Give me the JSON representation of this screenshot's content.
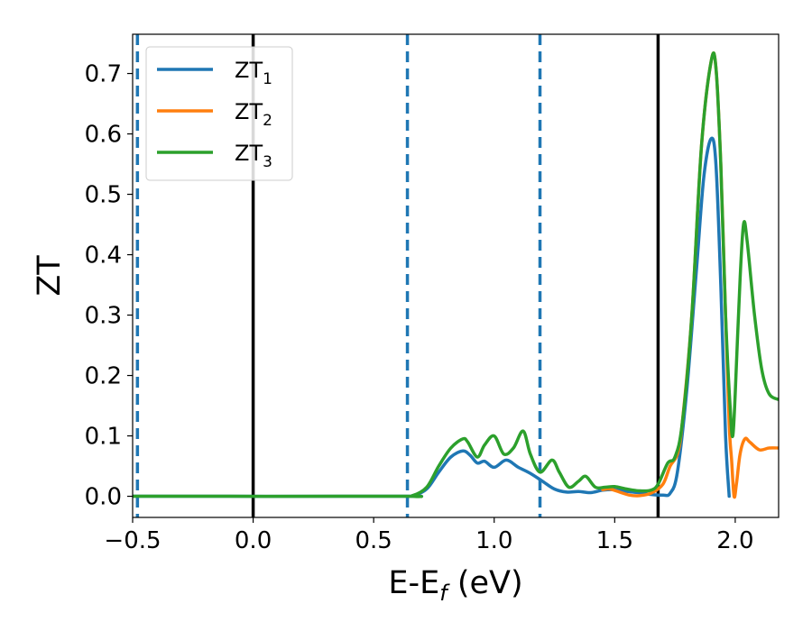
{
  "chart_data": {
    "type": "line",
    "xlabel": {
      "main": "E-E",
      "sub": "f",
      "suffix": " (eV)"
    },
    "ylabel": "ZT",
    "xlim": [
      -0.5,
      2.18
    ],
    "ylim": [
      -0.035,
      0.765
    ],
    "xticks": [
      -0.5,
      0.0,
      0.5,
      1.0,
      1.5,
      2.0
    ],
    "xtick_labels": [
      "−0.5",
      "0.0",
      "0.5",
      "1.0",
      "1.5",
      "2.0"
    ],
    "yticks": [
      0.0,
      0.1,
      0.2,
      0.3,
      0.4,
      0.5,
      0.6,
      0.7
    ],
    "ytick_labels": [
      "0.0",
      "0.1",
      "0.2",
      "0.3",
      "0.4",
      "0.5",
      "0.6",
      "0.7"
    ],
    "legend_position": "upper-left",
    "vlines": [
      {
        "x": -0.48,
        "style": "dashed",
        "color": "#1f77b4"
      },
      {
        "x": 0.0,
        "style": "solid",
        "color": "#000000"
      },
      {
        "x": 0.64,
        "style": "dashed",
        "color": "#1f77b4"
      },
      {
        "x": 1.19,
        "style": "dashed",
        "color": "#1f77b4"
      },
      {
        "x": 1.68,
        "style": "solid",
        "color": "#000000"
      }
    ],
    "series": [
      {
        "name": "ZT",
        "sub": "1",
        "color": "#1f77b4",
        "points": [
          [
            -0.5,
            0.0
          ],
          [
            0.6,
            0.0
          ],
          [
            0.66,
            0.001
          ],
          [
            0.72,
            0.012
          ],
          [
            0.77,
            0.04
          ],
          [
            0.82,
            0.065
          ],
          [
            0.87,
            0.075
          ],
          [
            0.9,
            0.068
          ],
          [
            0.93,
            0.055
          ],
          [
            0.96,
            0.058
          ],
          [
            1.0,
            0.048
          ],
          [
            1.05,
            0.06
          ],
          [
            1.1,
            0.048
          ],
          [
            1.15,
            0.038
          ],
          [
            1.2,
            0.025
          ],
          [
            1.25,
            0.012
          ],
          [
            1.3,
            0.007
          ],
          [
            1.35,
            0.008
          ],
          [
            1.4,
            0.006
          ],
          [
            1.45,
            0.01
          ],
          [
            1.5,
            0.011
          ],
          [
            1.55,
            0.008
          ],
          [
            1.6,
            0.006
          ],
          [
            1.65,
            0.003
          ],
          [
            1.7,
            0.002
          ],
          [
            1.73,
            0.005
          ],
          [
            1.76,
            0.04
          ],
          [
            1.8,
            0.18
          ],
          [
            1.84,
            0.38
          ],
          [
            1.87,
            0.53
          ],
          [
            1.9,
            0.592
          ],
          [
            1.92,
            0.55
          ],
          [
            1.94,
            0.35
          ],
          [
            1.96,
            0.1
          ],
          [
            1.975,
            0.0
          ]
        ]
      },
      {
        "name": "ZT",
        "sub": "2",
        "color": "#ff7f0e",
        "points": [
          [
            1.45,
            0.011
          ],
          [
            1.48,
            0.012
          ],
          [
            1.52,
            0.007
          ],
          [
            1.56,
            0.002
          ],
          [
            1.6,
            0.001
          ],
          [
            1.65,
            0.005
          ],
          [
            1.7,
            0.02
          ],
          [
            1.73,
            0.05
          ],
          [
            1.76,
            0.07
          ],
          [
            1.78,
            0.12
          ],
          [
            1.82,
            0.3
          ],
          [
            1.86,
            0.58
          ],
          [
            1.9,
            0.72
          ],
          [
            1.92,
            0.71
          ],
          [
            1.94,
            0.55
          ],
          [
            1.96,
            0.3
          ],
          [
            1.975,
            0.12
          ],
          [
            1.985,
            0.06
          ],
          [
            1.995,
            0.0
          ],
          [
            2.005,
            0.02
          ],
          [
            2.02,
            0.07
          ],
          [
            2.04,
            0.095
          ],
          [
            2.06,
            0.09
          ],
          [
            2.1,
            0.077
          ],
          [
            2.14,
            0.08
          ],
          [
            2.18,
            0.08
          ]
        ]
      },
      {
        "name": "ZT",
        "sub": "3",
        "color": "#2ca02c",
        "points": [
          [
            -0.5,
            0.0
          ],
          [
            0.6,
            0.0
          ],
          [
            0.66,
            0.001
          ],
          [
            0.72,
            0.015
          ],
          [
            0.77,
            0.05
          ],
          [
            0.82,
            0.08
          ],
          [
            0.87,
            0.095
          ],
          [
            0.89,
            0.09
          ],
          [
            0.93,
            0.065
          ],
          [
            0.96,
            0.085
          ],
          [
            1.0,
            0.1
          ],
          [
            1.04,
            0.07
          ],
          [
            1.08,
            0.08
          ],
          [
            1.12,
            0.108
          ],
          [
            1.15,
            0.07
          ],
          [
            1.19,
            0.04
          ],
          [
            1.24,
            0.06
          ],
          [
            1.27,
            0.04
          ],
          [
            1.31,
            0.015
          ],
          [
            1.35,
            0.025
          ],
          [
            1.38,
            0.033
          ],
          [
            1.42,
            0.015
          ],
          [
            1.46,
            0.015
          ],
          [
            1.5,
            0.016
          ],
          [
            1.55,
            0.012
          ],
          [
            1.6,
            0.009
          ],
          [
            1.65,
            0.01
          ],
          [
            1.68,
            0.02
          ],
          [
            1.72,
            0.055
          ],
          [
            1.75,
            0.065
          ],
          [
            1.78,
            0.12
          ],
          [
            1.82,
            0.3
          ],
          [
            1.86,
            0.58
          ],
          [
            1.9,
            0.72
          ],
          [
            1.92,
            0.71
          ],
          [
            1.94,
            0.55
          ],
          [
            1.96,
            0.3
          ],
          [
            1.98,
            0.14
          ],
          [
            1.99,
            0.1
          ],
          [
            2.0,
            0.17
          ],
          [
            2.02,
            0.36
          ],
          [
            2.035,
            0.452
          ],
          [
            2.05,
            0.42
          ],
          [
            2.08,
            0.3
          ],
          [
            2.11,
            0.21
          ],
          [
            2.14,
            0.17
          ],
          [
            2.18,
            0.16
          ]
        ]
      }
    ]
  }
}
